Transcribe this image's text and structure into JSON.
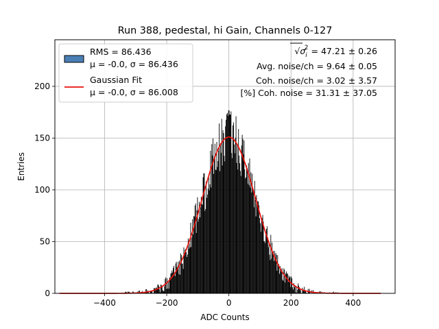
{
  "chart_data": {
    "type": "bar",
    "title": "Run 388, pedestal, hi Gain, Channels 0-127",
    "xlabel": "ADC Counts",
    "ylabel": "Entries",
    "xlim": [
      -560,
      535
    ],
    "ylim": [
      0,
      245
    ],
    "xticks": [
      -400,
      -200,
      0,
      200,
      400
    ],
    "xtick_labels": [
      "−400",
      "−200",
      "0",
      "200",
      "400"
    ],
    "yticks": [
      0,
      50,
      100,
      150,
      200
    ],
    "ytick_labels": [
      "0",
      "50",
      "100",
      "150",
      "200"
    ],
    "grid": true,
    "legend_position": "top-left",
    "histogram": {
      "name": "RMS = 86.436",
      "name_line2": "μ = -0.0, σ = 86.436",
      "bin_width": 2,
      "x_range": [
        -340,
        360
      ],
      "peak_entries": 177,
      "color": "#000000",
      "legend_color": "#4a7fb5"
    },
    "fit": {
      "name": "Gaussian Fit",
      "name_line2": "μ = -0.0, σ = 86.008",
      "mu": 0.0,
      "sigma": 86.008,
      "amplitude": 151,
      "x_range": [
        -545,
        490
      ],
      "color": "#e8120c"
    },
    "annotations": [
      {
        "prefix": "√",
        "symbol": "σ",
        "sub": "i",
        "sup": "2",
        "rest": " = 47.21 ± 0.26"
      },
      {
        "text": "Avg. noise/ch = 9.64 ± 0.05"
      },
      {
        "text": "Coh. noise/ch = 3.02 ± 3.57"
      },
      {
        "text": "[%] Coh. noise = 31.31 ± 37.05"
      }
    ]
  }
}
